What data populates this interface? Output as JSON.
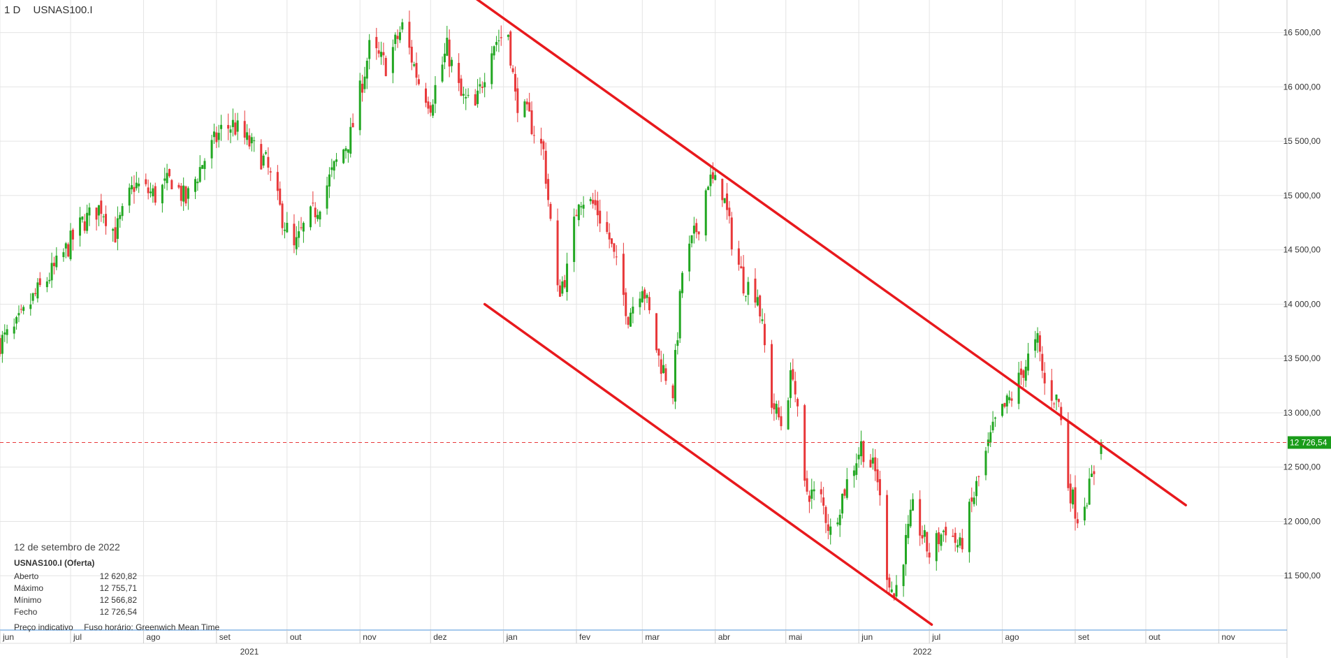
{
  "header": {
    "timeframe": "1 D",
    "symbol": "USNAS100.I"
  },
  "info": {
    "date": "12 de setembro de 2022",
    "instrument": "USNAS100.I (Oferta)",
    "rows": [
      {
        "label": "Aberto",
        "value": "12 620,82"
      },
      {
        "label": "Máximo",
        "value": "12 755,71"
      },
      {
        "label": "Mínimo",
        "value": "12 566,82"
      },
      {
        "label": "Fecho",
        "value": "12 726,54"
      }
    ]
  },
  "footer": {
    "indicative": "Preço indicativo",
    "timezone": "Fuso horário: Greenwich Mean Time"
  },
  "colors": {
    "up": "#22a722",
    "down": "#e8383a",
    "trendline": "#e8191d",
    "current": "#1a9c1a",
    "grid": "#e4e4e4"
  },
  "chart_data": {
    "type": "candlestick",
    "ylim": [
      11000,
      16800
    ],
    "y_ticks": [
      {
        "value": 11500,
        "label": "11 500,00"
      },
      {
        "value": 12000,
        "label": "12 000,00"
      },
      {
        "value": 12500,
        "label": "12 500,00"
      },
      {
        "value": 13000,
        "label": "13 000,00"
      },
      {
        "value": 13500,
        "label": "13 500,00"
      },
      {
        "value": 14000,
        "label": "14 000,00"
      },
      {
        "value": 14500,
        "label": "14 500,00"
      },
      {
        "value": 15000,
        "label": "15 000,00"
      },
      {
        "value": 15500,
        "label": "15 500,00"
      },
      {
        "value": 16000,
        "label": "16 000,00"
      },
      {
        "value": 16500,
        "label": "16 500,00"
      }
    ],
    "x_range": [
      "2021-06-01",
      "2022-11-30"
    ],
    "x_ticks": [
      {
        "date": "2021-06-01",
        "label": "jun"
      },
      {
        "date": "2021-07-01",
        "label": "jul"
      },
      {
        "date": "2021-08-01",
        "label": "ago"
      },
      {
        "date": "2021-09-01",
        "label": "set"
      },
      {
        "date": "2021-10-01",
        "label": "out"
      },
      {
        "date": "2021-11-01",
        "label": "nov"
      },
      {
        "date": "2021-12-01",
        "label": "dez"
      },
      {
        "date": "2022-01-01",
        "label": "jan"
      },
      {
        "date": "2022-02-01",
        "label": "fev"
      },
      {
        "date": "2022-03-01",
        "label": "mar"
      },
      {
        "date": "2022-04-01",
        "label": "abr"
      },
      {
        "date": "2022-05-01",
        "label": "mai"
      },
      {
        "date": "2022-06-01",
        "label": "jun"
      },
      {
        "date": "2022-07-01",
        "label": "jul"
      },
      {
        "date": "2022-08-01",
        "label": "ago"
      },
      {
        "date": "2022-09-01",
        "label": "set"
      },
      {
        "date": "2022-10-01",
        "label": "out"
      },
      {
        "date": "2022-11-01",
        "label": "nov"
      }
    ],
    "year_ticks": [
      {
        "date": "2021-09-15",
        "label": "2021"
      },
      {
        "date": "2022-06-28",
        "label": "2022"
      }
    ],
    "current_price": {
      "value": 12726.54,
      "label": "12 726,54"
    },
    "path": [
      {
        "date": "2021-06-01",
        "close": 13650
      },
      {
        "date": "2021-06-07",
        "close": 13750
      },
      {
        "date": "2021-06-15",
        "close": 14050
      },
      {
        "date": "2021-06-25",
        "close": 14350
      },
      {
        "date": "2021-07-06",
        "close": 14750
      },
      {
        "date": "2021-07-14",
        "close": 14900
      },
      {
        "date": "2021-07-20",
        "close": 14650
      },
      {
        "date": "2021-07-28",
        "close": 15100
      },
      {
        "date": "2021-08-06",
        "close": 15000
      },
      {
        "date": "2021-08-13",
        "close": 15150
      },
      {
        "date": "2021-08-19",
        "close": 14950
      },
      {
        "date": "2021-08-26",
        "close": 15300
      },
      {
        "date": "2021-09-03",
        "close": 15600
      },
      {
        "date": "2021-09-08",
        "close": 15650
      },
      {
        "date": "2021-09-16",
        "close": 15450
      },
      {
        "date": "2021-09-22",
        "close": 15300
      },
      {
        "date": "2021-09-29",
        "close": 14800
      },
      {
        "date": "2021-10-04",
        "close": 14500
      },
      {
        "date": "2021-10-08",
        "close": 14700
      },
      {
        "date": "2021-10-14",
        "close": 14900
      },
      {
        "date": "2021-10-22",
        "close": 15300
      },
      {
        "date": "2021-10-28",
        "close": 15550
      },
      {
        "date": "2021-11-05",
        "close": 16350
      },
      {
        "date": "2021-11-12",
        "close": 16200
      },
      {
        "date": "2021-11-19",
        "close": 16550
      },
      {
        "date": "2021-11-26",
        "close": 16050
      },
      {
        "date": "2021-12-01",
        "close": 15850
      },
      {
        "date": "2021-12-08",
        "close": 16350
      },
      {
        "date": "2021-12-14",
        "close": 15900
      },
      {
        "date": "2021-12-20",
        "close": 15800
      },
      {
        "date": "2021-12-27",
        "close": 16400
      },
      {
        "date": "2022-01-03",
        "close": 16500
      },
      {
        "date": "2022-01-06",
        "close": 15900
      },
      {
        "date": "2022-01-12",
        "close": 15700
      },
      {
        "date": "2022-01-18",
        "close": 15400
      },
      {
        "date": "2022-01-24",
        "close": 14100
      },
      {
        "date": "2022-01-28",
        "close": 14300
      },
      {
        "date": "2022-02-02",
        "close": 15000
      },
      {
        "date": "2022-02-09",
        "close": 14900
      },
      {
        "date": "2022-02-15",
        "close": 14600
      },
      {
        "date": "2022-02-23",
        "close": 13900
      },
      {
        "date": "2022-03-01",
        "close": 14200
      },
      {
        "date": "2022-03-08",
        "close": 13500
      },
      {
        "date": "2022-03-14",
        "close": 13200
      },
      {
        "date": "2022-03-18",
        "close": 14300
      },
      {
        "date": "2022-03-25",
        "close": 14750
      },
      {
        "date": "2022-03-29",
        "close": 15150
      },
      {
        "date": "2022-04-04",
        "close": 15050
      },
      {
        "date": "2022-04-08",
        "close": 14600
      },
      {
        "date": "2022-04-13",
        "close": 14200
      },
      {
        "date": "2022-04-19",
        "close": 14100
      },
      {
        "date": "2022-04-25",
        "close": 13100
      },
      {
        "date": "2022-04-29",
        "close": 12900
      },
      {
        "date": "2022-05-04",
        "close": 13400
      },
      {
        "date": "2022-05-09",
        "close": 12300
      },
      {
        "date": "2022-05-16",
        "close": 12200
      },
      {
        "date": "2022-05-20",
        "close": 11900
      },
      {
        "date": "2022-05-26",
        "close": 12300
      },
      {
        "date": "2022-06-02",
        "close": 12700
      },
      {
        "date": "2022-06-09",
        "close": 12400
      },
      {
        "date": "2022-06-13",
        "close": 11550
      },
      {
        "date": "2022-06-16",
        "close": 11300
      },
      {
        "date": "2022-06-24",
        "close": 12100
      },
      {
        "date": "2022-07-01",
        "close": 11700
      },
      {
        "date": "2022-07-08",
        "close": 11950
      },
      {
        "date": "2022-07-14",
        "close": 11750
      },
      {
        "date": "2022-07-22",
        "close": 12400
      },
      {
        "date": "2022-07-29",
        "close": 12900
      },
      {
        "date": "2022-08-05",
        "close": 13150
      },
      {
        "date": "2022-08-12",
        "close": 13500
      },
      {
        "date": "2022-08-16",
        "close": 13650
      },
      {
        "date": "2022-08-19",
        "close": 13250
      },
      {
        "date": "2022-08-25",
        "close": 13100
      },
      {
        "date": "2022-08-29",
        "close": 12350
      },
      {
        "date": "2022-09-02",
        "close": 12050
      },
      {
        "date": "2022-09-07",
        "close": 12300
      },
      {
        "date": "2022-09-12",
        "close": 12726
      }
    ],
    "trendlines": [
      {
        "x1": "2021-11-22",
        "y1": 17250,
        "x2": "2022-10-18",
        "y2": 12150
      },
      {
        "x1": "2021-12-24",
        "y1": 14000,
        "x2": "2022-07-02",
        "y2": 11050
      }
    ]
  }
}
